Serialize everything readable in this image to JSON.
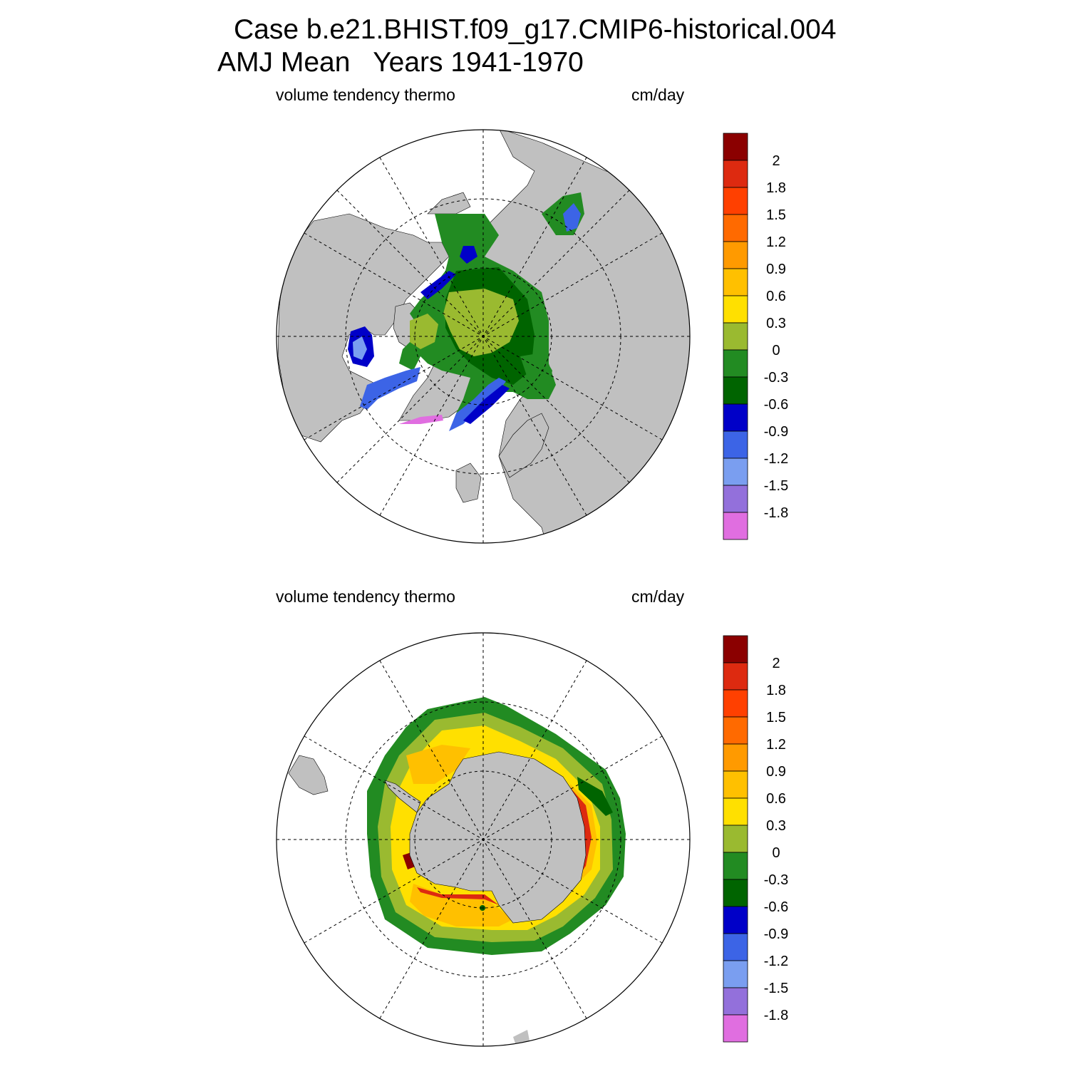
{
  "title": {
    "line1": "Case b.e21.BHIST.f09_g17.CMIP6-historical.004",
    "line2": "AMJ Mean   Years 1941-1970"
  },
  "panels": [
    {
      "id": "north",
      "hemisphere": "Arctic",
      "left_label": "volume tendency thermo",
      "right_label": "cm/day"
    },
    {
      "id": "south",
      "hemisphere": "Antarctic",
      "left_label": "volume tendency thermo",
      "right_label": "cm/day"
    }
  ],
  "colorbar": {
    "labels": [
      "2",
      "1.8",
      "1.5",
      "1.2",
      "0.9",
      "0.6",
      "0.3",
      "0",
      "-0.3",
      "-0.6",
      "-0.9",
      "-1.2",
      "-1.5",
      "-1.8"
    ],
    "colors": [
      "#8b0000",
      "#dd2a10",
      "#ff4000",
      "#ff6a00",
      "#ff9a00",
      "#ffc000",
      "#ffe000",
      "#9aba30",
      "#228b22",
      "#006400",
      "#0000c8",
      "#3c64e6",
      "#7a9ef0",
      "#9370db",
      "#e06ee0"
    ]
  },
  "colors": {
    "land": "#c0c0c0",
    "grid": "#000000",
    "missing": "#ffffff"
  }
}
